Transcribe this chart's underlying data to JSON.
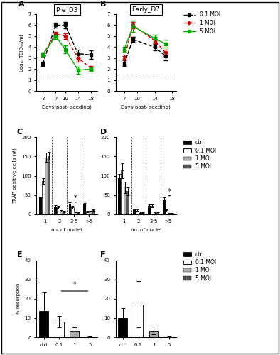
{
  "panelA": {
    "title": "Pre_D3",
    "days": [
      3,
      7,
      10,
      14,
      18
    ],
    "moi01": [
      2.5,
      6.0,
      6.0,
      3.4,
      3.3
    ],
    "moi01_err": [
      0.2,
      0.25,
      0.3,
      0.4,
      0.4
    ],
    "moi1": [
      3.3,
      5.2,
      5.0,
      3.0,
      2.1
    ],
    "moi1_err": [
      0.15,
      0.2,
      0.25,
      0.35,
      0.2
    ],
    "moi5": [
      3.3,
      5.0,
      3.8,
      1.9,
      2.0
    ],
    "moi5_err": [
      0.2,
      0.25,
      0.35,
      0.35,
      0.15
    ],
    "ylim": [
      0,
      7
    ],
    "yticks": [
      0,
      1,
      2,
      3,
      4,
      5,
      6,
      7
    ],
    "xlabel": "Days(post- seeding)",
    "ylabel": "Log₁₀ TCID₅₀/ml",
    "hline": 1.5
  },
  "panelB": {
    "title": "Early_D7",
    "days": [
      7,
      9,
      14,
      16.5
    ],
    "moi01": [
      2.5,
      4.7,
      4.0,
      3.2
    ],
    "moi01_err": [
      0.2,
      0.25,
      0.3,
      0.4
    ],
    "moi1": [
      3.0,
      6.0,
      4.6,
      3.5
    ],
    "moi1_err": [
      0.2,
      0.3,
      0.25,
      0.3
    ],
    "moi5": [
      3.8,
      5.9,
      4.8,
      4.3
    ],
    "moi5_err": [
      0.2,
      0.5,
      0.3,
      0.35
    ],
    "ylim": [
      0,
      7
    ],
    "yticks": [
      0,
      1,
      2,
      3,
      4,
      5,
      6,
      7
    ],
    "xlabel": "Days(post- seeding)",
    "ylabel": "",
    "hline": 1.5,
    "xticks": [
      7,
      10,
      14,
      18
    ]
  },
  "panelC": {
    "groups": [
      "1",
      "2",
      "3-5",
      ">5"
    ],
    "ctrl": [
      46,
      20,
      25,
      26
    ],
    "ctrl_err": [
      5,
      4,
      5,
      3
    ],
    "moi01": [
      86,
      18,
      18,
      7
    ],
    "moi01_err": [
      8,
      3,
      3,
      2
    ],
    "moi1": [
      148,
      8,
      5,
      8
    ],
    "moi1_err": [
      12,
      2,
      1,
      1.5
    ],
    "moi5": [
      151,
      6,
      3,
      10
    ],
    "moi5_err": [
      10,
      2,
      1,
      1.5
    ],
    "ylim": [
      0,
      200
    ],
    "yticks": [
      0,
      50,
      100,
      150,
      200
    ],
    "ylabel": "TRAP positive cells (#)",
    "xlabel": "no. of nuclei"
  },
  "panelD": {
    "groups": [
      "1",
      "2",
      "3-5",
      ">5"
    ],
    "ctrl": [
      93,
      12,
      22,
      38
    ],
    "ctrl_err": [
      12,
      3,
      4,
      5
    ],
    "moi01": [
      113,
      12,
      22,
      10
    ],
    "moi01_err": [
      20,
      3,
      4,
      3
    ],
    "moi1": [
      70,
      5,
      3,
      2
    ],
    "moi1_err": [
      15,
      1.5,
      1,
      0.5
    ],
    "moi5": [
      60,
      4,
      3,
      2
    ],
    "moi5_err": [
      10,
      1,
      1,
      0.5
    ],
    "ylim": [
      0,
      200
    ],
    "yticks": [
      0,
      50,
      100,
      150,
      200
    ],
    "ylabel": "",
    "xlabel": "no. of nuclei"
  },
  "panelE": {
    "categories": [
      "ctrl",
      "0.1",
      "1",
      "5"
    ],
    "values": [
      13.5,
      8.0,
      3.5,
      0.3
    ],
    "errors": [
      10,
      3,
      1.5,
      0.3
    ],
    "ylim": [
      0,
      40
    ],
    "yticks": [
      0,
      10,
      20,
      30,
      40
    ],
    "ylabel": "% resorption",
    "colors": [
      "#000000",
      "#ffffff",
      "#aaaaaa",
      "#555555"
    ]
  },
  "panelF": {
    "categories": [
      "ctrl",
      "0.1",
      "1",
      "5"
    ],
    "values": [
      10,
      17,
      3.5,
      0.5
    ],
    "errors": [
      5,
      12,
      2,
      0.3
    ],
    "ylim": [
      0,
      40
    ],
    "yticks": [
      0,
      10,
      20,
      30,
      40
    ],
    "ylabel": "",
    "colors": [
      "#000000",
      "#ffffff",
      "#aaaaaa",
      "#555555"
    ]
  },
  "colors": {
    "black": "#000000",
    "red": "#cc0000",
    "green": "#00aa00",
    "ctrl_bar": "#000000",
    "moi01_bar": "#ffffff",
    "moi1_bar": "#b0b0b0",
    "moi5_bar": "#555555"
  },
  "legend_AB": [
    "0.1 MOI",
    "1 MOI",
    "5 MOI"
  ],
  "legend_CD": [
    "ctrl",
    "0.1 MOI",
    "1 MOI",
    "5 MOI"
  ]
}
